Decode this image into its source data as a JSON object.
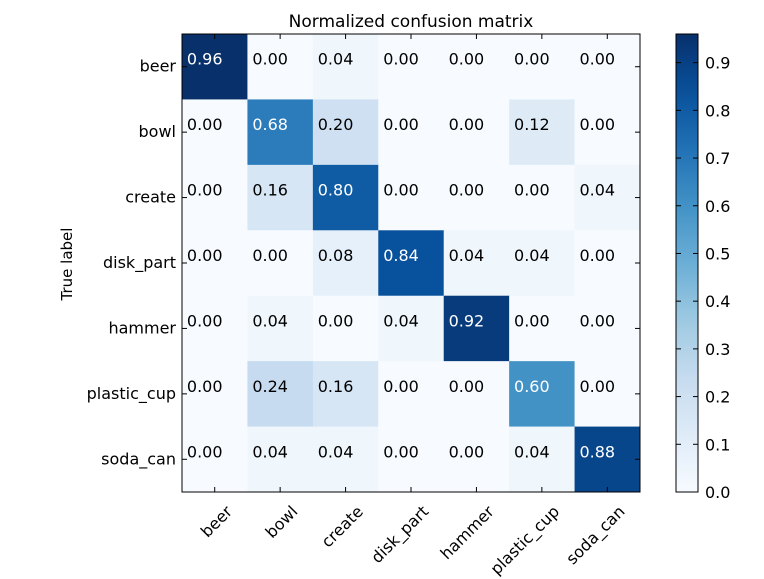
{
  "chart_data": {
    "type": "heatmap",
    "title": "Normalized confusion matrix",
    "ylabel": "True label",
    "xlabel": "",
    "x_categories": [
      "beer",
      "bowl",
      "create",
      "disk_part",
      "hammer",
      "plastic_cup",
      "soda_can"
    ],
    "y_categories": [
      "beer",
      "bowl",
      "create",
      "disk_part",
      "hammer",
      "plastic_cup",
      "soda_can"
    ],
    "values": [
      [
        0.96,
        0.0,
        0.04,
        0.0,
        0.0,
        0.0,
        0.0
      ],
      [
        0.0,
        0.68,
        0.2,
        0.0,
        0.0,
        0.12,
        0.0
      ],
      [
        0.0,
        0.16,
        0.8,
        0.0,
        0.0,
        0.0,
        0.04
      ],
      [
        0.0,
        0.0,
        0.08,
        0.84,
        0.04,
        0.04,
        0.0
      ],
      [
        0.0,
        0.04,
        0.0,
        0.04,
        0.92,
        0.0,
        0.0
      ],
      [
        0.0,
        0.24,
        0.16,
        0.0,
        0.0,
        0.6,
        0.0
      ],
      [
        0.0,
        0.04,
        0.04,
        0.0,
        0.0,
        0.04,
        0.88
      ]
    ],
    "value_format": "2-decimals",
    "colormap": "Blues",
    "colorbar": {
      "range": [
        0.0,
        0.96
      ],
      "ticks": [
        0.0,
        0.1,
        0.2,
        0.3,
        0.4,
        0.5,
        0.6,
        0.7,
        0.8,
        0.9
      ],
      "tick_labels": [
        "0.0",
        "0.1",
        "0.2",
        "0.3",
        "0.4",
        "0.5",
        "0.6",
        "0.7",
        "0.8",
        "0.9"
      ]
    },
    "grid": false,
    "xtick_rotation_deg": 45
  }
}
